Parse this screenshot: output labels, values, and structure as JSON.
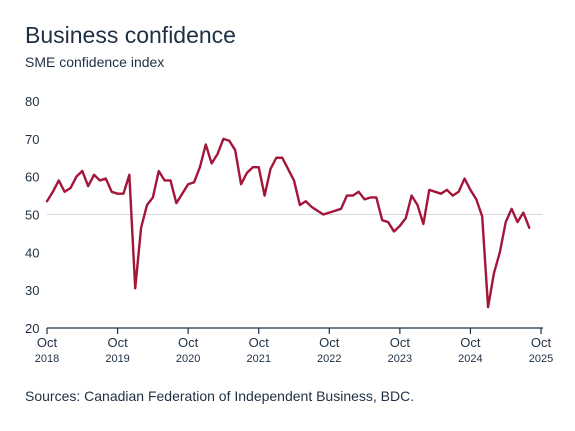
{
  "chart_data": {
    "type": "line",
    "title": "Business confidence",
    "subtitle": "SME confidence index",
    "source": "Sources: Canadian Federation of Independent Business, BDC.",
    "ylim": [
      20,
      80
    ],
    "yticks": [
      "80",
      "70",
      "60",
      "50",
      "40",
      "30",
      "20"
    ],
    "y_tick_values": [
      80,
      70,
      60,
      50,
      40,
      30,
      20
    ],
    "highlight_gridline": 50,
    "xlim": [
      0,
      84
    ],
    "x_ticks": [
      {
        "x": 0,
        "month": "Oct",
        "year": "2018"
      },
      {
        "x": 12,
        "month": "Oct",
        "year": "2019"
      },
      {
        "x": 24,
        "month": "Oct",
        "year": "2020"
      },
      {
        "x": 36,
        "month": "Oct",
        "year": "2021"
      },
      {
        "x": 48,
        "month": "Oct",
        "year": "2022"
      },
      {
        "x": 60,
        "month": "Oct",
        "year": "2023"
      },
      {
        "x": 72,
        "month": "Oct",
        "year": "2024"
      },
      {
        "x": 84,
        "month": "Oct",
        "year": "2025"
      }
    ],
    "series": [
      {
        "color": "#a3163a",
        "values": [
          53.5,
          56,
          59,
          56,
          57,
          60,
          61.5,
          57.5,
          60.5,
          59,
          59.5,
          56,
          55.5,
          55.5,
          60.5,
          30.5,
          46.5,
          52.5,
          54.5,
          61.5,
          59,
          59,
          53,
          55.5,
          58,
          58.5,
          62.5,
          68.5,
          63.5,
          66,
          70,
          69.5,
          67,
          58,
          61,
          62.5,
          62.5,
          55,
          62,
          65,
          65,
          62,
          59,
          52.5,
          53.5,
          52,
          51,
          50,
          50.5,
          51,
          51.5,
          55,
          55,
          56,
          54,
          54.5,
          54.5,
          48.5,
          48,
          45.5,
          47,
          49,
          55,
          52.5,
          47.5,
          56.5,
          56,
          55.5,
          56.5,
          55,
          56,
          59.5,
          56.5,
          54,
          49.5,
          25.5,
          34.5,
          40,
          48,
          51.5,
          48,
          50.5,
          46.5
        ]
      }
    ]
  }
}
